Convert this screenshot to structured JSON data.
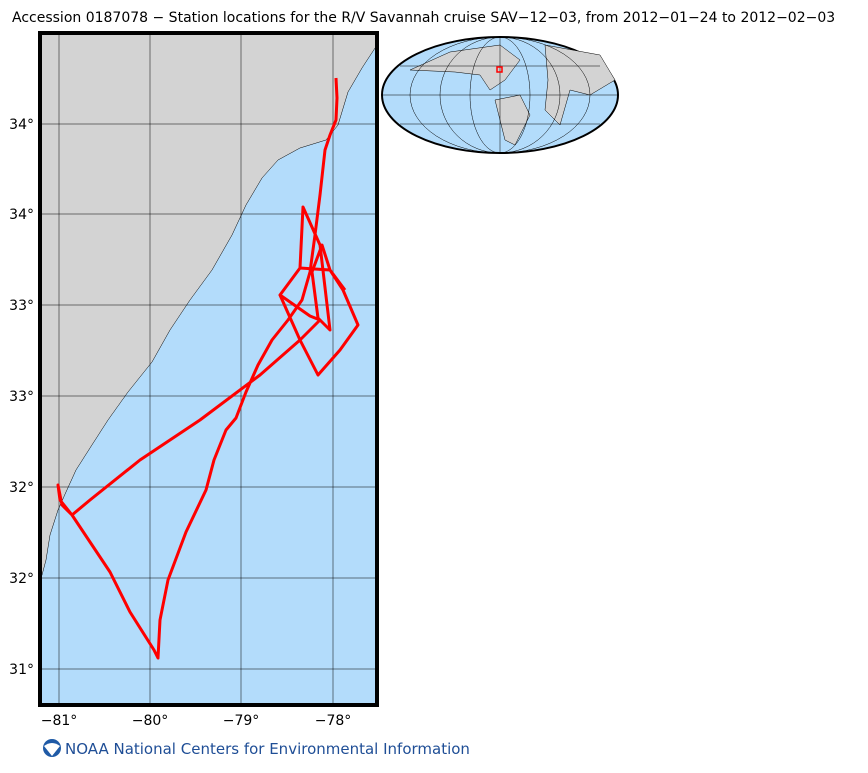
{
  "title": "Accession 0187078 − Station locations for the R/V Savannah cruise SAV−12−03, from 2012−01−24 to 2012−02−03",
  "map": {
    "x_tick_labels": [
      "−81°",
      "−80°",
      "−79°",
      "−78°"
    ],
    "y_tick_labels": [
      "34°",
      "34°",
      "33°",
      "33°",
      "32°",
      "32°",
      "31°"
    ]
  },
  "footer": "NOAA National Centers for Environmental Information"
}
